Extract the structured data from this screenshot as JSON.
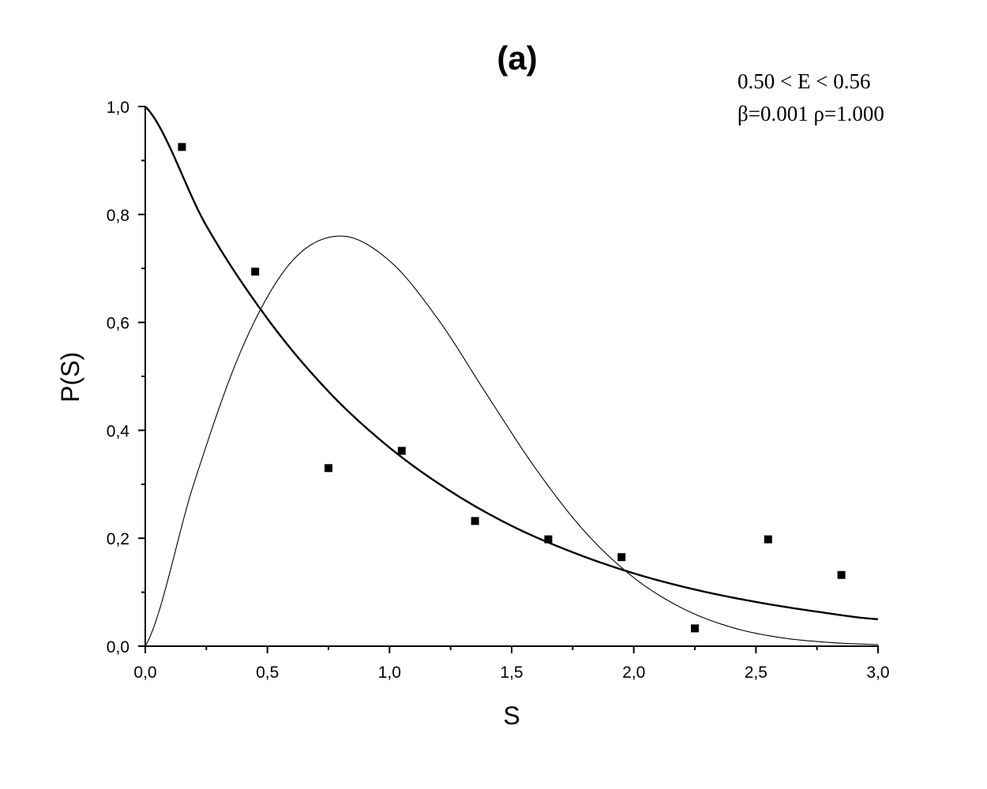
{
  "chart_data": {
    "type": "scatter",
    "title": "(a)",
    "xlabel": "S",
    "ylabel": "P(S)",
    "xlim": [
      0.0,
      3.0
    ],
    "ylim": [
      0.0,
      1.0
    ],
    "x_ticks": [
      0.0,
      0.5,
      1.0,
      1.5,
      2.0,
      2.5,
      3.0
    ],
    "x_tick_labels": [
      "0,0",
      "0,5",
      "1,0",
      "1,5",
      "2,0",
      "2,5",
      "3,0"
    ],
    "y_ticks": [
      0.0,
      0.2,
      0.4,
      0.6,
      0.8,
      1.0
    ],
    "y_tick_labels": [
      "0,0",
      "0,2",
      "0,4",
      "0,6",
      "0,8",
      "1,0"
    ],
    "annotations": [
      "0.50 < E < 0.56",
      "β=0.001 ρ=1.000"
    ],
    "grid": false,
    "legend": false,
    "series": [
      {
        "kind": "points",
        "x": [
          0.15,
          0.45,
          0.75,
          1.05,
          1.35,
          1.65,
          1.95,
          2.25,
          2.55,
          2.85
        ],
        "y": [
          0.925,
          0.694,
          0.33,
          0.362,
          0.232,
          0.198,
          0.165,
          0.033,
          0.198,
          0.132
        ]
      },
      {
        "kind": "line",
        "stroke": "#000000",
        "x": [
          0.0,
          0.25,
          0.5,
          0.75,
          1.0,
          1.25,
          1.5,
          1.75,
          2.0,
          2.25,
          2.5,
          2.75,
          3.0
        ],
        "y": [
          1.0,
          0.779,
          0.607,
          0.472,
          0.368,
          0.287,
          0.223,
          0.174,
          0.135,
          0.105,
          0.082,
          0.064,
          0.05
        ]
      },
      {
        "kind": "line",
        "stroke": "#000000",
        "x": [
          0.0,
          0.2,
          0.4,
          0.6,
          0.8,
          1.0,
          1.2,
          1.4,
          1.6,
          1.8,
          2.0,
          2.2,
          2.4,
          2.6,
          2.8,
          3.0
        ],
        "y": [
          0.0,
          0.303,
          0.556,
          0.713,
          0.76,
          0.714,
          0.605,
          0.465,
          0.328,
          0.212,
          0.127,
          0.07,
          0.035,
          0.016,
          0.007,
          0.003
        ]
      }
    ]
  }
}
